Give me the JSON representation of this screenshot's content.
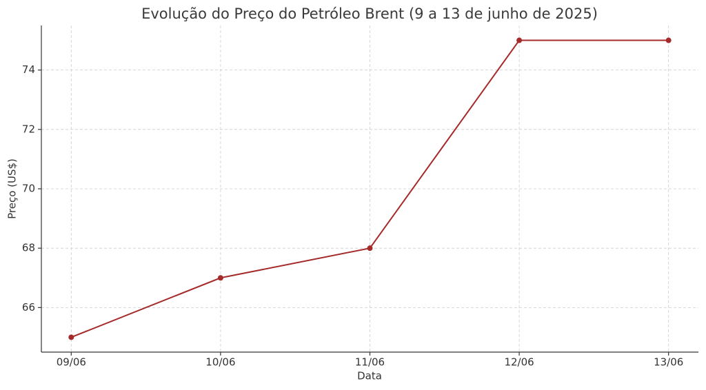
{
  "chart_data": {
    "type": "line",
    "title": "Evolução do Preço do Petróleo Brent (9 a 13 de junho de 2025)",
    "x_label": "Data",
    "y_label": "Preço (US$)",
    "categories": [
      "09/06",
      "10/06",
      "11/06",
      "12/06",
      "13/06"
    ],
    "values": [
      65,
      67,
      68,
      75,
      75
    ],
    "color": "#a52a2a",
    "ylim": [
      64.5,
      75.5
    ],
    "yticks": [
      66,
      68,
      70,
      72,
      74
    ],
    "grid": true
  }
}
